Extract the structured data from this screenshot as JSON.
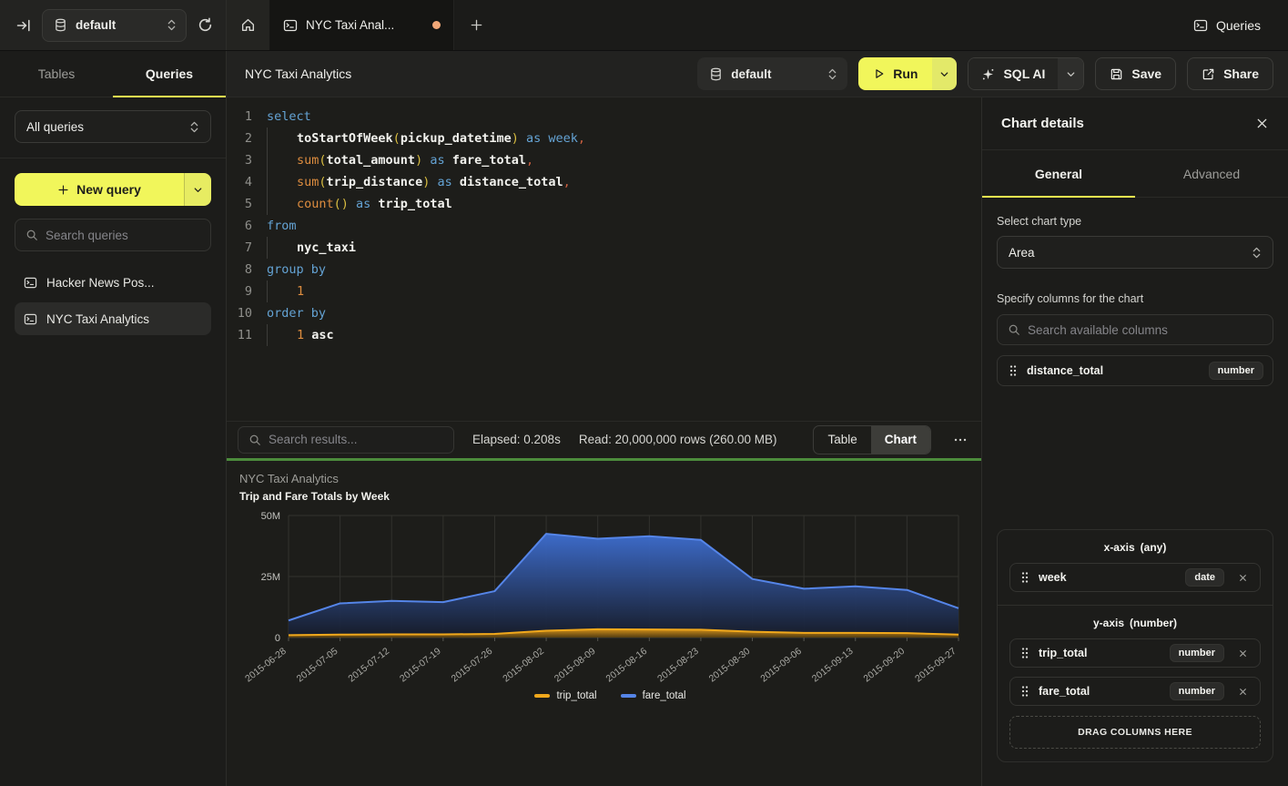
{
  "topbar": {
    "database": "default",
    "tab_title": "NYC Taxi Anal...",
    "queries_label": "Queries"
  },
  "sidebar": {
    "tabs": [
      {
        "label": "Tables",
        "active": false
      },
      {
        "label": "Queries",
        "active": true
      }
    ],
    "filter_select": "All queries",
    "new_query_label": "New query",
    "search_placeholder": "Search queries",
    "queries": [
      {
        "label": "Hacker News Pos...",
        "active": false
      },
      {
        "label": "NYC Taxi Analytics",
        "active": true
      }
    ]
  },
  "toolbar": {
    "title": "NYC Taxi Analytics",
    "database": "default",
    "run_label": "Run",
    "sql_ai_label": "SQL AI",
    "save_label": "Save",
    "share_label": "Share"
  },
  "editor": {
    "lines": [
      {
        "n": "1",
        "indent": false,
        "segs": [
          {
            "t": "select",
            "c": "kw"
          }
        ]
      },
      {
        "n": "2",
        "indent": true,
        "segs": [
          {
            "t": "toStartOfWeek",
            "c": "id"
          },
          {
            "t": "(",
            "c": "pa"
          },
          {
            "t": "pickup_datetime",
            "c": "id"
          },
          {
            "t": ")",
            "c": "pa"
          },
          {
            "t": " as ",
            "c": "kw"
          },
          {
            "t": "week",
            "c": "kw"
          },
          {
            "t": ",",
            "c": "cm"
          }
        ]
      },
      {
        "n": "3",
        "indent": true,
        "segs": [
          {
            "t": "sum",
            "c": "fn"
          },
          {
            "t": "(",
            "c": "pa"
          },
          {
            "t": "total_amount",
            "c": "id"
          },
          {
            "t": ")",
            "c": "pa"
          },
          {
            "t": " as ",
            "c": "kw"
          },
          {
            "t": "fare_total",
            "c": "id"
          },
          {
            "t": ",",
            "c": "cm"
          }
        ]
      },
      {
        "n": "4",
        "indent": true,
        "segs": [
          {
            "t": "sum",
            "c": "fn"
          },
          {
            "t": "(",
            "c": "pa"
          },
          {
            "t": "trip_distance",
            "c": "id"
          },
          {
            "t": ")",
            "c": "pa"
          },
          {
            "t": " as ",
            "c": "kw"
          },
          {
            "t": "distance_total",
            "c": "id"
          },
          {
            "t": ",",
            "c": "cm"
          }
        ]
      },
      {
        "n": "5",
        "indent": true,
        "segs": [
          {
            "t": "count",
            "c": "fn"
          },
          {
            "t": "()",
            "c": "pa"
          },
          {
            "t": " as ",
            "c": "kw"
          },
          {
            "t": "trip_total",
            "c": "id"
          }
        ]
      },
      {
        "n": "6",
        "indent": false,
        "segs": [
          {
            "t": "from",
            "c": "kw"
          }
        ]
      },
      {
        "n": "7",
        "indent": true,
        "segs": [
          {
            "t": "nyc_taxi",
            "c": "id"
          }
        ]
      },
      {
        "n": "8",
        "indent": false,
        "segs": [
          {
            "t": "group by",
            "c": "kw"
          }
        ]
      },
      {
        "n": "9",
        "indent": true,
        "segs": [
          {
            "t": "1",
            "c": "nm"
          }
        ]
      },
      {
        "n": "10",
        "indent": false,
        "segs": [
          {
            "t": "order by",
            "c": "kw"
          }
        ]
      },
      {
        "n": "11",
        "indent": true,
        "segs": [
          {
            "t": "1",
            "c": "nm"
          },
          {
            "t": " asc",
            "c": "id"
          }
        ]
      }
    ]
  },
  "results": {
    "search_placeholder": "Search results...",
    "elapsed": "Elapsed: 0.208s",
    "read": "Read: 20,000,000 rows (260.00 MB)",
    "view_table": "Table",
    "view_chart": "Chart",
    "active_view": "Chart"
  },
  "chart_panel": {
    "title": "NYC Taxi Analytics",
    "subtitle": "Trip and Fare Totals by Week"
  },
  "chart_data": {
    "type": "area",
    "title": "NYC Taxi Analytics",
    "subtitle": "Trip and Fare Totals by Week",
    "x": [
      "2015-06-28",
      "2015-07-05",
      "2015-07-12",
      "2015-07-19",
      "2015-07-26",
      "2015-08-02",
      "2015-08-09",
      "2015-08-16",
      "2015-08-23",
      "2015-08-30",
      "2015-09-06",
      "2015-09-13",
      "2015-09-20",
      "2015-09-27"
    ],
    "series": [
      {
        "name": "trip_total",
        "color": "#f0a81c",
        "fill_top": "rgba(220,150,24,0.95)",
        "fill_bottom": "rgba(90,64,16,0.9)",
        "values": [
          1000000,
          1200000,
          1300000,
          1300000,
          1500000,
          2800000,
          3400000,
          3300000,
          3200000,
          2400000,
          1900000,
          1900000,
          1800000,
          1200000
        ]
      },
      {
        "name": "fare_total",
        "color": "#5585e8",
        "fill_top": "rgba(62,110,208,0.96)",
        "fill_bottom": "rgba(22,27,40,0.95)",
        "values": [
          7000000,
          14000000,
          15000000,
          14500000,
          19000000,
          42500000,
          40500000,
          41500000,
          40000000,
          24000000,
          20000000,
          21000000,
          19500000,
          12000000
        ]
      }
    ],
    "ylim": [
      0,
      50000000
    ],
    "yticks": [
      {
        "v": 0,
        "label": "0"
      },
      {
        "v": 25000000,
        "label": "25M"
      },
      {
        "v": 50000000,
        "label": "50M"
      }
    ],
    "grid": true,
    "legend_position": "bottom"
  },
  "right_panel": {
    "title": "Chart details",
    "tabs": [
      {
        "label": "General",
        "active": true
      },
      {
        "label": "Advanced",
        "active": false
      }
    ],
    "chart_type_label": "Select chart type",
    "chart_type_value": "Area",
    "columns_label": "Specify columns for the chart",
    "columns_search_placeholder": "Search available columns",
    "available_columns": [
      {
        "name": "distance_total",
        "type": "number"
      }
    ],
    "x_axis": {
      "label": "x-axis",
      "type_hint": "(any)",
      "items": [
        {
          "name": "week",
          "type": "date"
        }
      ]
    },
    "y_axis": {
      "label": "y-axis",
      "type_hint": "(number)",
      "items": [
        {
          "name": "trip_total",
          "type": "number"
        },
        {
          "name": "fare_total",
          "type": "number"
        }
      ]
    },
    "dragzone_label": "DRAG COLUMNS HERE"
  }
}
